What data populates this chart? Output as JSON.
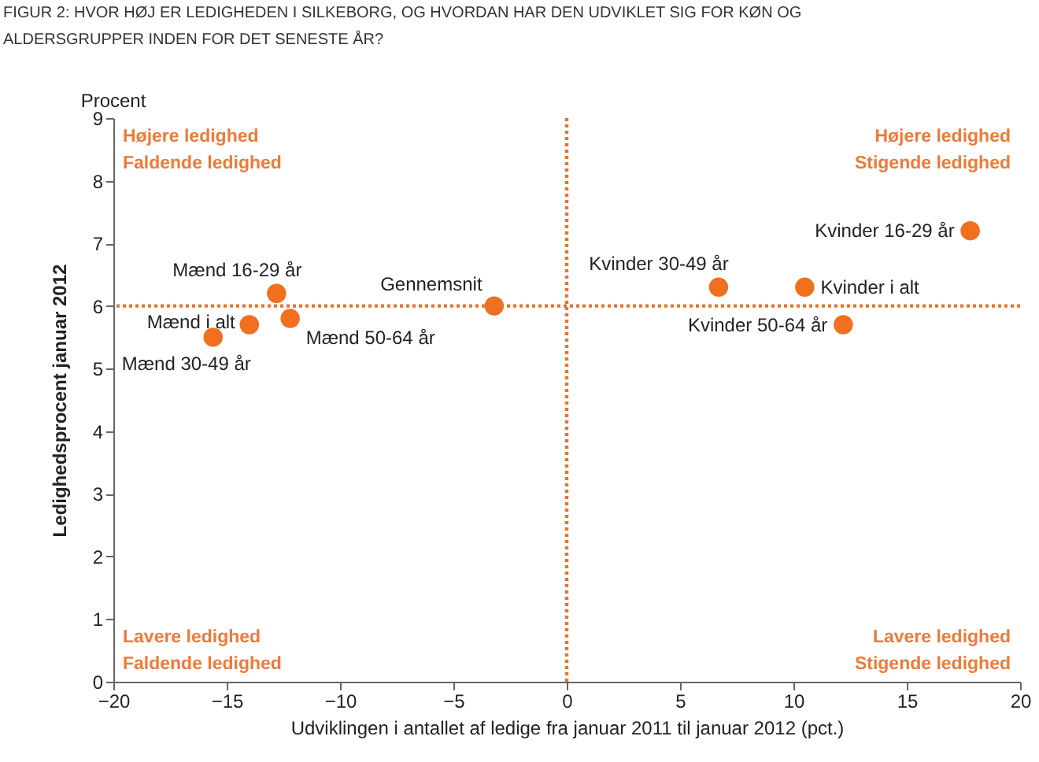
{
  "chart_data": {
    "type": "scatter",
    "title": [
      "FIGUR 2: HVOR HØJ ER LEDIGHEDEN I SILKEBORG, OG HVORDAN HAR DEN UDVIKLET SIG FOR KØN OG",
      "ALDERSGRUPPER INDEN FOR DET SENESTE ÅR?"
    ],
    "xlabel": "Udviklingen i antallet af ledige fra januar 2011 til januar 2012 (pct.)",
    "ylabel": "Ledighedsprocent januar 2012",
    "x": [
      -15.6,
      -14.0,
      -12.8,
      -12.2,
      -3.2,
      6.7,
      10.5,
      17.8,
      12.2
    ],
    "series": [
      {
        "color": "#f07020",
        "values": [
          5.5,
          5.7,
          6.2,
          5.8,
          6.0,
          6.3,
          6.3,
          7.2,
          5.7
        ]
      }
    ],
    "marker": "circle",
    "xlim": [
      -20,
      20
    ],
    "xticks": [
      -20,
      -15,
      -10,
      -5,
      0,
      5,
      10,
      15,
      20
    ],
    "ylim": [
      0,
      9
    ],
    "yticks": [
      0,
      1,
      2,
      3,
      4,
      5,
      6,
      7,
      8,
      9
    ],
    "ref_lines": [
      {
        "axis": "x",
        "value": 0,
        "color": "#e8742a",
        "line_style": "dotted"
      },
      {
        "axis": "y",
        "value": 6.0,
        "color": "#e8742a",
        "line_style": "dotted"
      }
    ],
    "annotations": [
      "Procent",
      "Højere ledighed\nFaldende ledighed",
      "Højere ledighed\nStigende ledighed",
      "Lavere ledighed\nFaldende ledighed",
      "Lavere ledighed\nStigende ledighed",
      {
        "text": "Mænd 30-49 år",
        "x": -15.6,
        "y": 5.5
      },
      {
        "text": "Mænd i alt",
        "x": -14.0,
        "y": 5.7
      },
      {
        "text": "Mænd 16-29 år",
        "x": -12.8,
        "y": 6.2
      },
      {
        "text": "Mænd 50-64 år",
        "x": -12.2,
        "y": 5.8
      },
      {
        "text": "Gennemsnit",
        "x": -3.2,
        "y": 6.0
      },
      {
        "text": "Kvinder 30-49 år",
        "x": 6.7,
        "y": 6.3
      },
      {
        "text": "Kvinder i alt",
        "x": 10.5,
        "y": 6.3
      },
      {
        "text": "Kvinder 16-29 år",
        "x": 17.8,
        "y": 7.2
      },
      {
        "text": "Kvinder 50-64 år",
        "x": 12.2,
        "y": 5.7
      }
    ],
    "grid": false
  }
}
